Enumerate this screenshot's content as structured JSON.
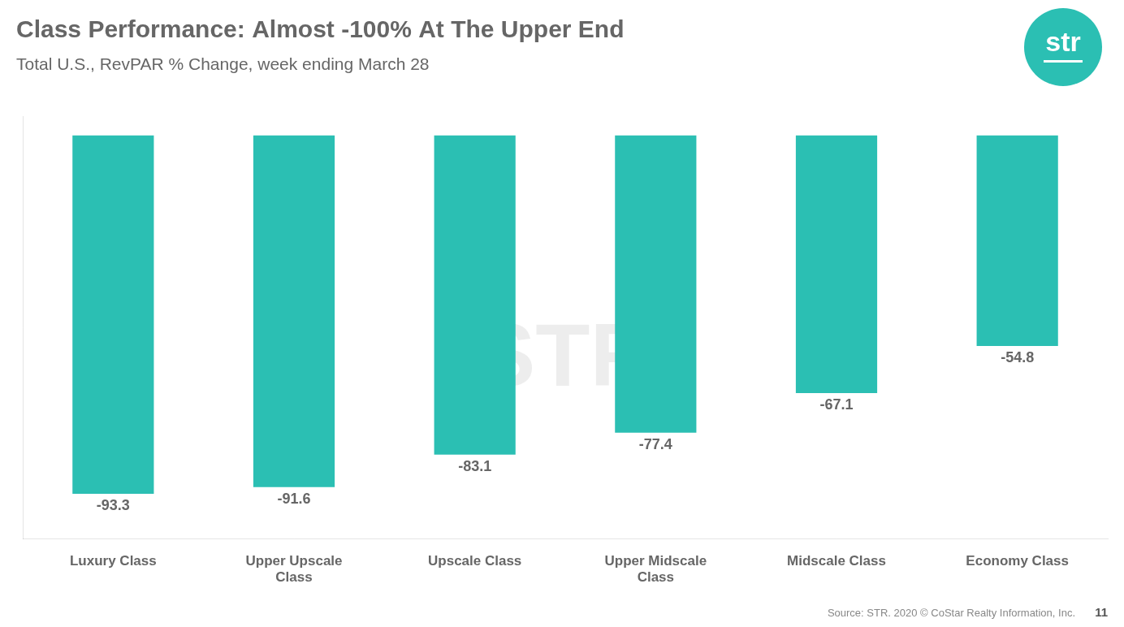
{
  "chart_data": {
    "type": "bar",
    "title": "Class Performance: Almost -100% At The Upper End",
    "subtitle": "Total U.S., RevPAR % Change, week ending March 28",
    "categories": [
      "Luxury Class",
      "Upper Upscale\nClass",
      "Upscale Class",
      "Upper Midscale\nClass",
      "Midscale Class",
      "Economy Class"
    ],
    "values": [
      -93.3,
      -91.6,
      -83.1,
      -77.4,
      -67.1,
      -54.8
    ],
    "color": "#2bbfb3",
    "ylim": [
      -105,
      5
    ],
    "grid": false,
    "legend": false,
    "data_labels": true,
    "tick_labels": "x",
    "annotations": [
      "STR",
      "str",
      "Source: STR. 2020 © CoStar Realty Information, Inc.",
      "11"
    ]
  }
}
